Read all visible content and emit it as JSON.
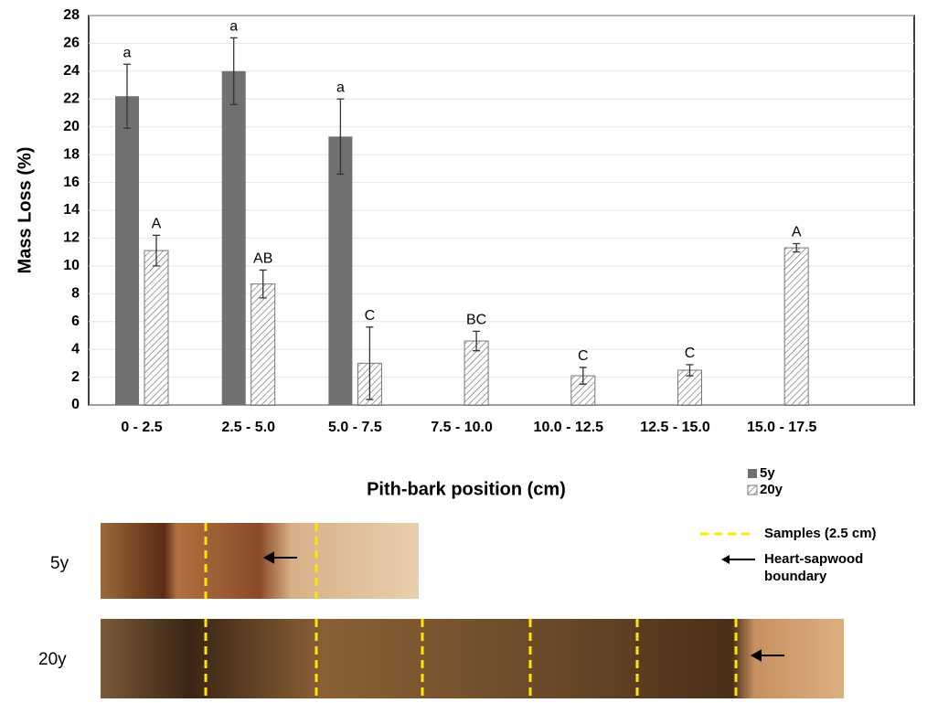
{
  "chart_data": {
    "type": "bar",
    "x_label": "Pith-bark position (cm)",
    "y_label": "Mass Loss (%)",
    "categories": [
      "0 - 2.5",
      "2.5 - 5.0",
      "5.0 - 7.5",
      "7.5 - 10.0",
      "10.0 - 12.5",
      "12.5 - 15.0",
      "15.0 - 17.5"
    ],
    "series": [
      {
        "name": "5y",
        "color": "#707070",
        "values": [
          22.2,
          24.0,
          19.3,
          null,
          null,
          null,
          null
        ],
        "errors": [
          2.3,
          2.4,
          2.7,
          null,
          null,
          null,
          null
        ],
        "letters": [
          "a",
          "a",
          "a",
          null,
          null,
          null,
          null
        ]
      },
      {
        "name": "20y",
        "color": "#ffffff",
        "values": [
          11.1,
          8.7,
          3.0,
          4.6,
          2.1,
          2.5,
          11.3
        ],
        "errors": [
          1.1,
          1.0,
          2.6,
          0.7,
          0.6,
          0.4,
          0.3
        ],
        "letters": [
          "A",
          "AB",
          "C",
          "BC",
          "C",
          "C",
          "A"
        ]
      }
    ],
    "ylim": [
      0,
      28
    ],
    "yticks": [
      0,
      2,
      4,
      6,
      8,
      10,
      12,
      14,
      16,
      18,
      20,
      22,
      24,
      26,
      28
    ],
    "grid": true
  },
  "photo_legend": {
    "samples": "Samples (2.5 cm)",
    "boundary": [
      "Heart-sapwood",
      "boundary"
    ]
  },
  "photos": [
    {
      "label": "5y"
    },
    {
      "label": "20y"
    }
  ]
}
